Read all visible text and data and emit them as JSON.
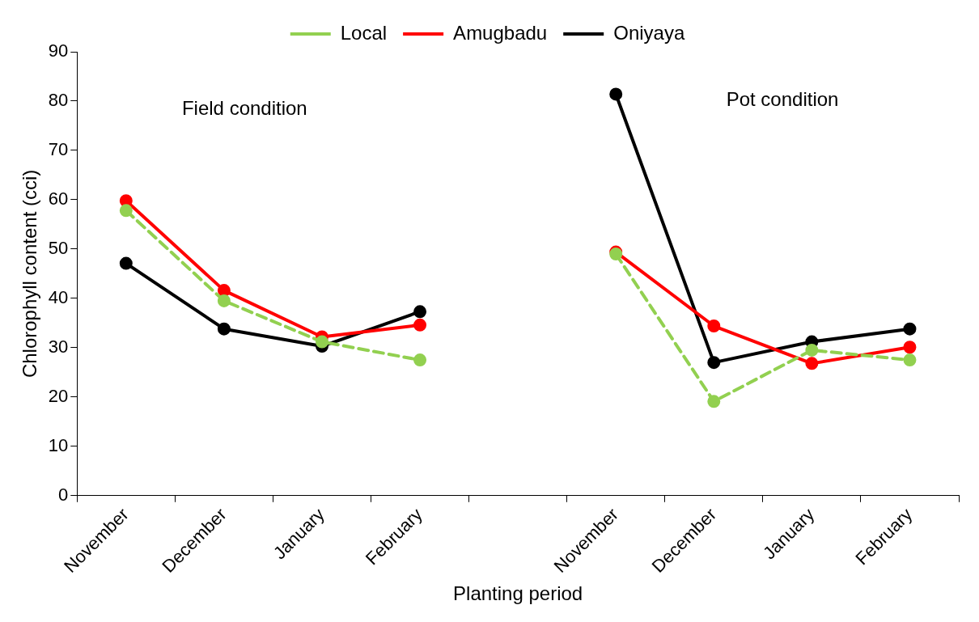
{
  "chart_data": {
    "type": "line",
    "xlabel": "Planting period",
    "ylabel": "Chlorophyll content (cci)",
    "categories": [
      "November",
      "December",
      "January",
      "February",
      null,
      "November",
      "December",
      "January",
      "February"
    ],
    "ylim": [
      0,
      90
    ],
    "yticks": [
      0,
      10,
      20,
      30,
      40,
      50,
      60,
      70,
      80,
      90
    ],
    "series": [
      {
        "name": "Local",
        "color": "#92d050",
        "line_style": "dashed",
        "values": [
          57.8,
          39.5,
          31.2,
          27.5,
          null,
          49.0,
          19.1,
          29.5,
          27.5
        ]
      },
      {
        "name": "Amugbadu",
        "color": "#ff0000",
        "line_style": "solid",
        "values": [
          59.8,
          41.6,
          32.2,
          34.6,
          null,
          49.4,
          34.4,
          26.8,
          30.1
        ]
      },
      {
        "name": "Oniyaya",
        "color": "#000000",
        "line_style": "solid",
        "values": [
          47.1,
          33.8,
          30.3,
          37.3,
          null,
          81.4,
          27.0,
          31.2,
          33.8
        ]
      }
    ],
    "marker": "circle",
    "grid": false,
    "legend": "top",
    "annotations": [
      "Field condition",
      "Pot condition"
    ]
  }
}
